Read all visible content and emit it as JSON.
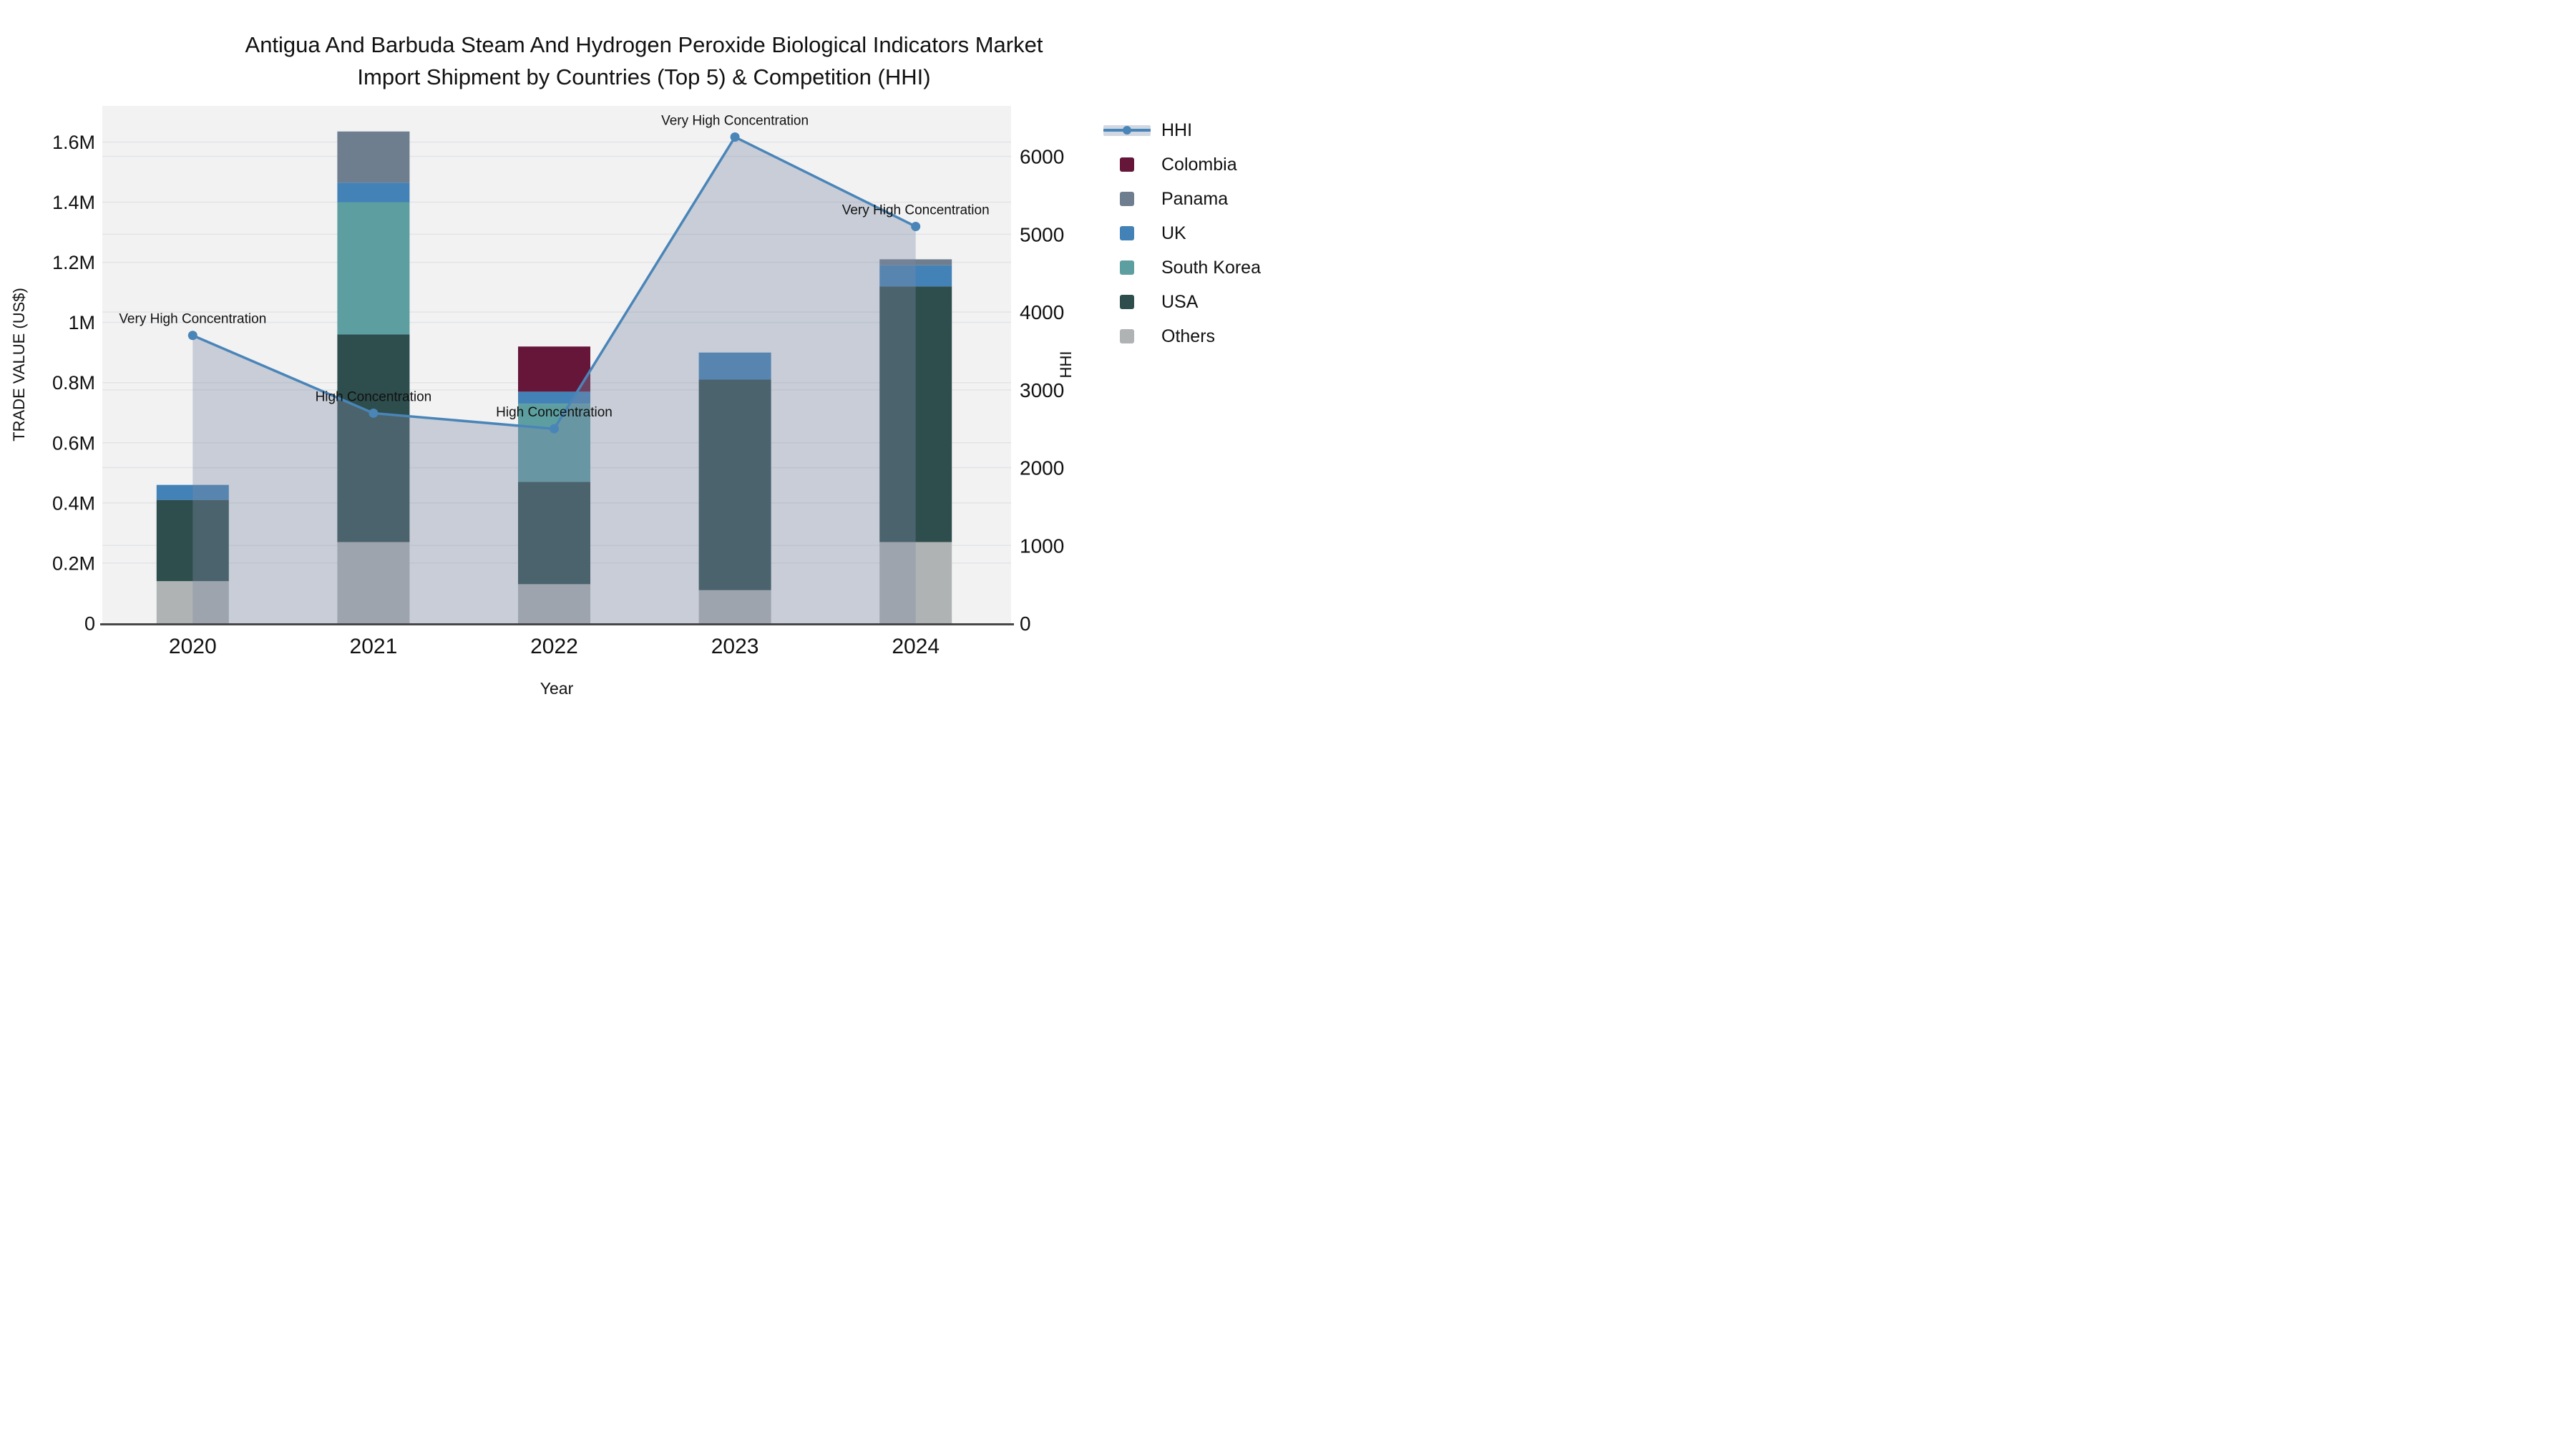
{
  "title": {
    "line1": "Antigua And Barbuda Steam And Hydrogen Peroxide Biological Indicators Market",
    "line2": "Import Shipment by Countries (Top 5) & Competition (HHI)"
  },
  "chart_data": {
    "type": "bar",
    "subtype": "stacked-bars-with-line-overlay",
    "categories": [
      "2020",
      "2021",
      "2022",
      "2023",
      "2024"
    ],
    "series": [
      {
        "name": "Others",
        "color": "#b0b3b3",
        "values": [
          140000,
          270000,
          130000,
          110000,
          270000
        ]
      },
      {
        "name": "USA",
        "color": "#2e4d4d",
        "values": [
          270000,
          690000,
          340000,
          700000,
          850000
        ]
      },
      {
        "name": "South Korea",
        "color": "#5d9fa1",
        "values": [
          0,
          440000,
          260000,
          0,
          0
        ]
      },
      {
        "name": "UK",
        "color": "#4282b6",
        "values": [
          50000,
          65000,
          40000,
          90000,
          70000
        ]
      },
      {
        "name": "Panama",
        "color": "#6e7e8e",
        "values": [
          0,
          170000,
          0,
          0,
          20000
        ]
      },
      {
        "name": "Colombia",
        "color": "#651639",
        "values": [
          0,
          0,
          150000,
          0,
          0
        ]
      }
    ],
    "bar_totals": [
      460000,
      1635000,
      920000,
      900000,
      1210000
    ],
    "line": {
      "name": "HHI",
      "color": "#4a85b8",
      "area_color": "rgba(124,138,165,0.36)",
      "values": [
        3700,
        2700,
        2500,
        6250,
        5100
      ]
    },
    "annotations": [
      {
        "year": "2020",
        "text": "Very High Concentration"
      },
      {
        "year": "2021",
        "text": "High Concentration"
      },
      {
        "year": "2022",
        "text": "High Concentration"
      },
      {
        "year": "2023",
        "text": "Very High Concentration"
      },
      {
        "year": "2024",
        "text": "Very High Concentration"
      }
    ],
    "y_left": {
      "label": "TRADE VALUE (US$)",
      "max": 1720000,
      "ticks": [
        {
          "value": 0,
          "label": "0"
        },
        {
          "value": 200000,
          "label": "0.2M"
        },
        {
          "value": 400000,
          "label": "0.4M"
        },
        {
          "value": 600000,
          "label": "0.6M"
        },
        {
          "value": 800000,
          "label": "0.8M"
        },
        {
          "value": 1000000,
          "label": "1M"
        },
        {
          "value": 1200000,
          "label": "1.2M"
        },
        {
          "value": 1400000,
          "label": "1.4M"
        },
        {
          "value": 1600000,
          "label": "1.6M"
        }
      ]
    },
    "y_right": {
      "label": "HHI",
      "max": 6650,
      "ticks": [
        {
          "value": 0,
          "label": "0"
        },
        {
          "value": 1000,
          "label": "1000"
        },
        {
          "value": 2000,
          "label": "2000"
        },
        {
          "value": 3000,
          "label": "3000"
        },
        {
          "value": 4000,
          "label": "4000"
        },
        {
          "value": 5000,
          "label": "5000"
        },
        {
          "value": 6000,
          "label": "6000"
        }
      ]
    },
    "x_label": "Year",
    "grid": true,
    "legend_position": "right"
  },
  "legend": {
    "items": [
      {
        "label": "HHI",
        "type": "line",
        "color": "#4a85b8",
        "band_color": "#d0d7e2"
      },
      {
        "label": "Colombia",
        "type": "swatch",
        "color": "#651639"
      },
      {
        "label": "Panama",
        "type": "swatch",
        "color": "#6e7e8e"
      },
      {
        "label": "UK",
        "type": "swatch",
        "color": "#4282b6"
      },
      {
        "label": "South Korea",
        "type": "swatch",
        "color": "#5d9fa1"
      },
      {
        "label": "USA",
        "type": "swatch",
        "color": "#2e4d4d"
      },
      {
        "label": "Others",
        "type": "swatch",
        "color": "#b0b3b3"
      }
    ]
  },
  "colors": {
    "plot_bg": "#f2f2f3",
    "grid": "#e3e4e6",
    "axis_line": "#47474a",
    "text": "#111111"
  }
}
